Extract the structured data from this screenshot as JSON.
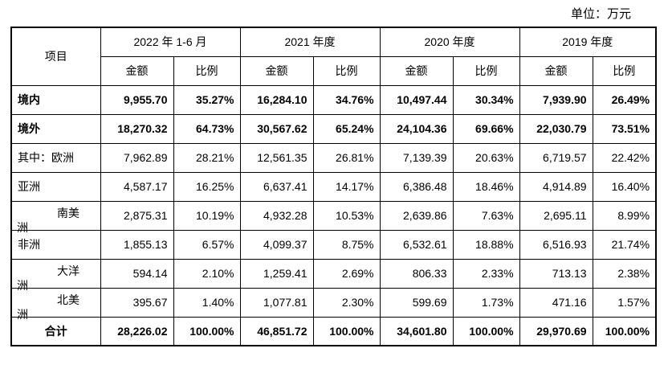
{
  "unit": "单位：万元",
  "header": {
    "item": "项目",
    "periods": [
      "2022 年 1-6 月",
      "2021 年度",
      "2020 年度",
      "2019 年度"
    ],
    "amount": "金额",
    "ratio": "比例"
  },
  "rows": [
    {
      "label": "境内",
      "v": [
        "9,955.70",
        "35.27%",
        "16,284.10",
        "34.76%",
        "10,497.44",
        "30.34%",
        "7,939.90",
        "26.49%"
      ]
    },
    {
      "label": "境外",
      "v": [
        "18,270.32",
        "64.73%",
        "30,567.62",
        "65.24%",
        "24,104.36",
        "69.66%",
        "22,030.79",
        "73.51%"
      ]
    },
    {
      "label": "其中：欧洲",
      "v": [
        "7,962.89",
        "28.21%",
        "12,561.35",
        "26.81%",
        "7,139.39",
        "20.63%",
        "6,719.57",
        "22.42%"
      ]
    },
    {
      "label": "亚洲",
      "v": [
        "4,587.17",
        "16.25%",
        "6,637.41",
        "14.17%",
        "6,386.48",
        "18.46%",
        "4,914.89",
        "16.40%"
      ]
    },
    {
      "label1": "南美",
      "label2": "洲",
      "v": [
        "2,875.31",
        "10.19%",
        "4,932.28",
        "10.53%",
        "2,639.86",
        "7.63%",
        "2,695.11",
        "8.99%"
      ]
    },
    {
      "label": "非洲",
      "v": [
        "1,855.13",
        "6.57%",
        "4,099.37",
        "8.75%",
        "6,532.61",
        "18.88%",
        "6,516.93",
        "21.74%"
      ]
    },
    {
      "label1": "大洋",
      "label2": "洲",
      "v": [
        "594.14",
        "2.10%",
        "1,259.41",
        "2.69%",
        "806.33",
        "2.33%",
        "713.13",
        "2.38%"
      ]
    },
    {
      "label1": "北美",
      "label2": "洲",
      "v": [
        "395.67",
        "1.40%",
        "1,077.81",
        "2.30%",
        "599.69",
        "1.73%",
        "471.16",
        "1.57%"
      ]
    },
    {
      "label": "合计",
      "v": [
        "28,226.02",
        "100.00%",
        "46,851.72",
        "100.00%",
        "34,601.80",
        "100.00%",
        "29,970.69",
        "100.00%"
      ]
    }
  ]
}
